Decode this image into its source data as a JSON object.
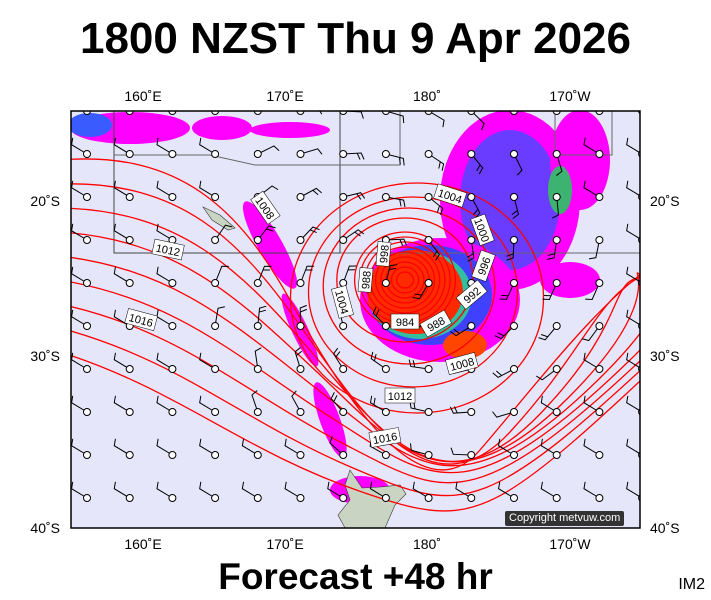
{
  "title": "1800 NZST Thu 9 Apr 2026",
  "footer": "Forecast +48 hr",
  "image_code": "IM2",
  "copyright": "Copyright metvuw.com",
  "map": {
    "lon_labels": [
      "160˚E",
      "170˚E",
      "180˚",
      "170˚W"
    ],
    "lat_labels": [
      "20˚S",
      "30˚S",
      "40˚S"
    ],
    "isobar_labels": [
      "984",
      "988",
      "992",
      "996",
      "1000",
      "1004",
      "1004",
      "1008",
      "1008",
      "1012",
      "1012",
      "1016",
      "1016",
      "988",
      "998"
    ],
    "colors": {
      "ocean": "#e6e6fa",
      "isobar": "#ff0000",
      "land": "#c9d5c2",
      "rain_light": "#ff00ff",
      "rain_moderate": "#8a2be2",
      "rain_heavy": "#ff2000"
    }
  }
}
